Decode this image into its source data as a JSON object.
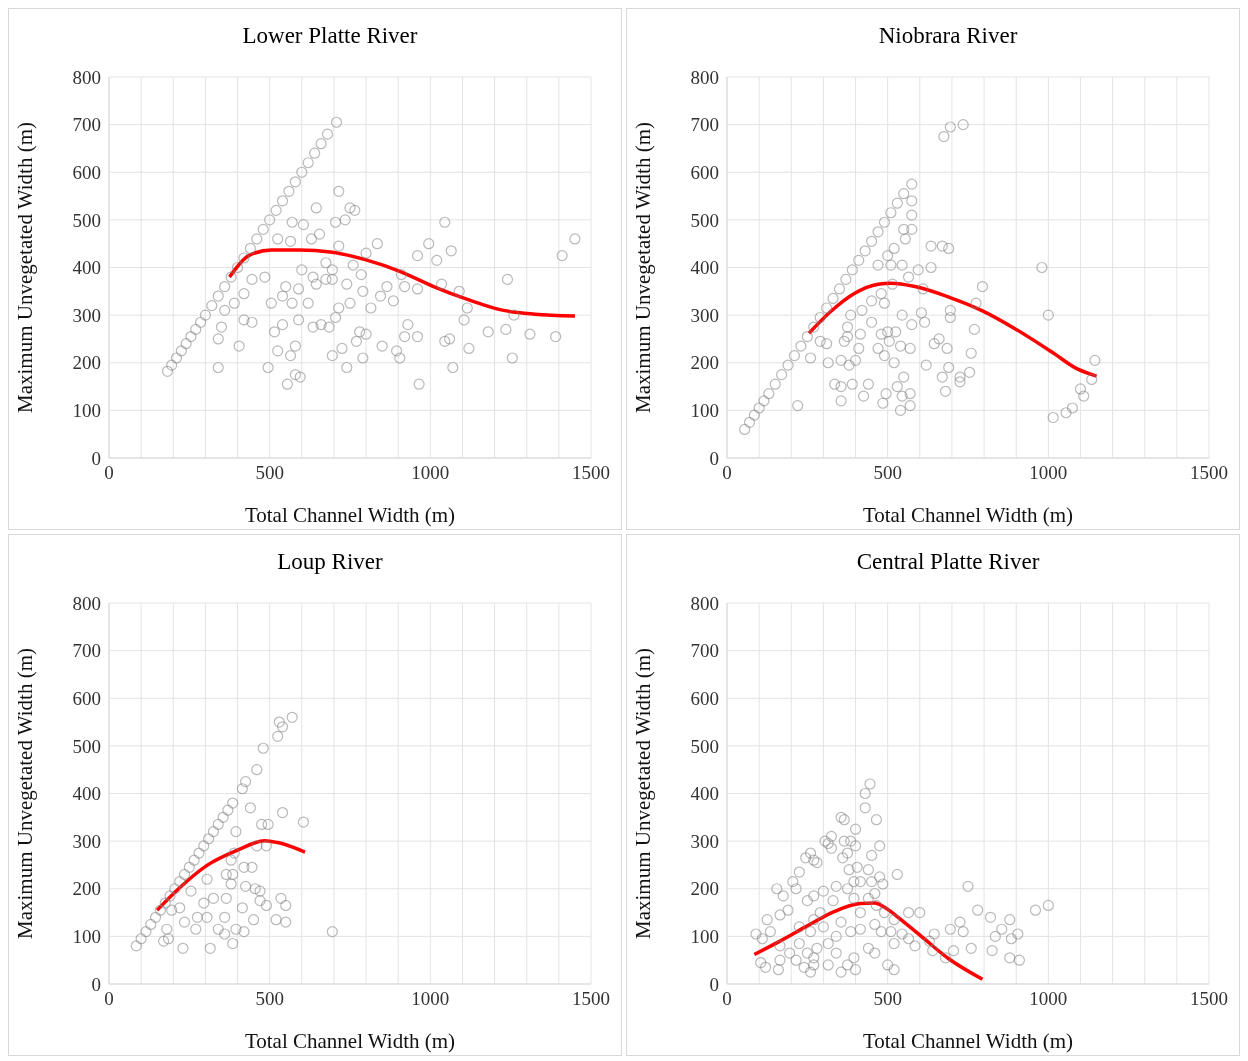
{
  "chart_data": [
    {
      "type": "scatter",
      "title": "Lower Platte River",
      "xlabel": "Total Channel Width (m)",
      "ylabel": "Maximum Unvegetated Width (m)",
      "xlim": [
        0,
        1500
      ],
      "xticks": [
        0,
        {
          "value": 100,
          "label": null
        },
        {
          "value": 200,
          "label": null
        },
        {
          "value": 300,
          "label": null
        },
        {
          "value": 400,
          "label": null
        },
        500,
        {
          "value": 600,
          "label": null
        },
        {
          "value": 700,
          "label": null
        },
        {
          "value": 800,
          "label": null
        },
        {
          "value": 900,
          "label": null
        },
        1000,
        {
          "value": 1100,
          "label": null
        },
        {
          "value": 1200,
          "label": null
        },
        {
          "value": 1300,
          "label": null
        },
        {
          "value": 1400,
          "label": null
        },
        1500
      ],
      "ylim": [
        0,
        800
      ],
      "yticks": [
        0,
        100,
        200,
        300,
        400,
        500,
        600,
        700,
        800
      ],
      "grid": true,
      "series": [
        {
          "type": "scatter",
          "marker": "circle",
          "color": "#7f7f7f",
          "x": [
            182,
            195,
            210,
            225,
            240,
            255,
            270,
            285,
            300,
            320,
            340,
            360,
            380,
            400,
            420,
            440,
            460,
            480,
            500,
            520,
            540,
            560,
            580,
            600,
            620,
            640,
            660,
            680,
            708,
            715,
            750,
            765,
            645,
            570,
            605,
            705,
            735,
            1045,
            995,
            1450,
            1410,
            1065,
            1020,
            960,
            835,
            800,
            715,
            655,
            630,
            525,
            565,
            1240,
            1035,
            1090,
            960,
            920,
            865,
            910,
            885,
            1115,
            1260,
            1105,
            1180,
            1235,
            1310,
            1390,
            1120,
            1255,
            1070,
            965,
            1060,
            1045,
            930,
            920,
            960,
            895,
            905,
            850,
            815,
            845,
            790,
            785,
            740,
            695,
            675,
            570,
            550,
            485,
            445,
            420,
            390,
            360,
            420,
            445,
            350,
            340,
            405,
            340,
            495,
            525,
            555,
            580,
            595,
            565,
            580,
            515,
            540,
            590,
            635,
            660,
            685,
            705,
            740,
            695,
            725,
            770,
            790,
            780,
            800,
            750,
            715,
            620,
            645,
            590,
            505,
            540,
            600,
            635,
            675,
            695,
            760
          ],
          "values": [
            182,
            195,
            210,
            225,
            240,
            255,
            270,
            285,
            300,
            320,
            340,
            360,
            380,
            400,
            420,
            440,
            460,
            480,
            500,
            520,
            540,
            560,
            580,
            600,
            620,
            640,
            660,
            680,
            705,
            560,
            525,
            520,
            525,
            495,
            490,
            495,
            500,
            495,
            450,
            460,
            425,
            435,
            415,
            425,
            450,
            430,
            445,
            470,
            460,
            460,
            455,
            375,
            365,
            350,
            355,
            360,
            360,
            385,
            330,
            315,
            300,
            290,
            265,
            270,
            260,
            255,
            230,
            210,
            190,
            155,
            250,
            245,
            280,
            255,
            255,
            225,
            210,
            235,
            315,
            340,
            350,
            385,
            365,
            375,
            410,
            325,
            360,
            380,
            375,
            345,
            325,
            310,
            290,
            285,
            275,
            250,
            235,
            190,
            190,
            225,
            155,
            175,
            170,
            215,
            235,
            265,
            280,
            290,
            275,
            280,
            275,
            295,
            190,
            215,
            230,
            245,
            210,
            265,
            260,
            325,
            315,
            325,
            365,
            355,
            325,
            340,
            395,
            380,
            375,
            395,
            405
          ]
        },
        {
          "type": "line",
          "color": "#ff0000",
          "x": [
            375,
            435,
            505,
            590,
            695,
            800,
            905,
            1010,
            1120,
            1220,
            1325,
            1450
          ],
          "values": [
            380,
            425,
            437,
            437,
            432,
            416,
            392,
            360,
            332,
            311,
            302,
            298
          ]
        }
      ]
    },
    {
      "type": "scatter",
      "title": "Niobrara River",
      "xlabel": "Total Channel Width (m)",
      "ylabel": "Maximum Unvegetated Width (m)",
      "xlim": [
        0,
        1500
      ],
      "xticks": [
        0,
        {
          "value": 100,
          "label": null
        },
        {
          "value": 200,
          "label": null
        },
        {
          "value": 300,
          "label": null
        },
        {
          "value": 400,
          "label": null
        },
        500,
        {
          "value": 600,
          "label": null
        },
        {
          "value": 700,
          "label": null
        },
        {
          "value": 800,
          "label": null
        },
        {
          "value": 900,
          "label": null
        },
        1000,
        {
          "value": 1100,
          "label": null
        },
        {
          "value": 1200,
          "label": null
        },
        {
          "value": 1300,
          "label": null
        },
        {
          "value": 1400,
          "label": null
        },
        1500
      ],
      "ylim": [
        0,
        800
      ],
      "yticks": [
        0,
        100,
        200,
        300,
        400,
        500,
        600,
        700,
        800
      ],
      "grid": true,
      "series": [
        {
          "type": "scatter",
          "marker": "circle",
          "color": "#7f7f7f",
          "x": [
            55,
            70,
            85,
            100,
            115,
            130,
            150,
            170,
            190,
            210,
            230,
            250,
            270,
            290,
            310,
            330,
            350,
            370,
            390,
            410,
            430,
            450,
            470,
            490,
            510,
            530,
            550,
            575,
            675,
            695,
            735,
            575,
            575,
            550,
            575,
            555,
            635,
            670,
            690,
            520,
            980,
            795,
            1000,
            775,
            695,
            695,
            610,
            595,
            635,
            545,
            510,
            470,
            500,
            565,
            515,
            480,
            450,
            490,
            420,
            385,
            375,
            450,
            415,
            375,
            480,
            500,
            525,
            575,
            615,
            645,
            660,
            685,
            760,
            770,
            545,
            605,
            570,
            540,
            505,
            470,
            490,
            410,
            365,
            310,
            290,
            260,
            315,
            355,
            380,
            400,
            520,
            620,
            690,
            670,
            725,
            755,
            725,
            680,
            550,
            530,
            570,
            545,
            495,
            485,
            425,
            440,
            390,
            355,
            335,
            355,
            540,
            570,
            220,
            1145,
            1135,
            1100,
            1110,
            1075,
            1055,
            1015
          ],
          "values": [
            60,
            75,
            90,
            105,
            120,
            135,
            155,
            175,
            195,
            215,
            235,
            255,
            275,
            295,
            315,
            335,
            355,
            375,
            395,
            415,
            435,
            455,
            475,
            495,
            515,
            535,
            555,
            575,
            675,
            695,
            700,
            540,
            510,
            480,
            480,
            460,
            445,
            445,
            440,
            440,
            400,
            360,
            300,
            325,
            310,
            295,
            355,
            395,
            400,
            405,
            405,
            405,
            425,
            380,
            365,
            345,
            330,
            325,
            310,
            300,
            275,
            285,
            260,
            255,
            260,
            265,
            265,
            280,
            285,
            240,
            250,
            230,
            220,
            270,
            300,
            305,
            230,
            235,
            245,
            230,
            215,
            230,
            245,
            240,
            245,
            210,
            200,
            205,
            195,
            205,
            200,
            195,
            190,
            170,
            170,
            180,
            160,
            140,
            170,
            150,
            135,
            130,
            135,
            115,
            130,
            155,
            155,
            150,
            155,
            120,
            100,
            110,
            110,
            205,
            165,
            145,
            130,
            105,
            95,
            85
          ]
        },
        {
          "type": "line",
          "color": "#ff0000",
          "x": [
            255,
            320,
            395,
            470,
            510,
            585,
            690,
            795,
            900,
            1010,
            1090,
            1150
          ],
          "values": [
            262,
            306,
            345,
            365,
            367,
            360,
            338,
            309,
            270,
            223,
            187,
            172
          ]
        }
      ]
    },
    {
      "type": "scatter",
      "title": "Loup River",
      "xlabel": "Total Channel Width (m)",
      "ylabel": "Maximum Unvegetated Width (m)",
      "xlim": [
        0,
        1500
      ],
      "xticks": [
        0,
        {
          "value": 100,
          "label": null
        },
        {
          "value": 200,
          "label": null
        },
        {
          "value": 300,
          "label": null
        },
        {
          "value": 400,
          "label": null
        },
        500,
        {
          "value": 600,
          "label": null
        },
        {
          "value": 700,
          "label": null
        },
        {
          "value": 800,
          "label": null
        },
        {
          "value": 900,
          "label": null
        },
        1000,
        {
          "value": 1100,
          "label": null
        },
        {
          "value": 1200,
          "label": null
        },
        {
          "value": 1300,
          "label": null
        },
        {
          "value": 1400,
          "label": null
        },
        1500
      ],
      "ylim": [
        0,
        800
      ],
      "yticks": [
        0,
        100,
        200,
        300,
        400,
        500,
        600,
        700,
        800
      ],
      "grid": true,
      "series": [
        {
          "type": "scatter",
          "marker": "circle",
          "color": "#7f7f7f",
          "x": [
            85,
            100,
            115,
            130,
            145,
            160,
            175,
            190,
            205,
            220,
            235,
            250,
            265,
            280,
            295,
            310,
            325,
            340,
            355,
            370,
            385,
            415,
            425,
            460,
            480,
            525,
            540,
            530,
            570,
            440,
            540,
            605,
            475,
            495,
            395,
            695,
            460,
            490,
            420,
            445,
            535,
            550,
            550,
            520,
            490,
            470,
            470,
            455,
            425,
            415,
            450,
            420,
            385,
            315,
            230,
            180,
            170,
            185,
            235,
            270,
            275,
            305,
            325,
            295,
            360,
            360,
            340,
            395,
            365,
            380,
            365,
            390,
            380,
            385,
            305,
            255,
            220,
            195
          ],
          "values": [
            80,
            95,
            110,
            125,
            140,
            155,
            170,
            185,
            200,
            215,
            230,
            245,
            260,
            275,
            290,
            305,
            320,
            335,
            350,
            365,
            380,
            410,
            425,
            450,
            495,
            520,
            540,
            550,
            560,
            370,
            360,
            340,
            335,
            335,
            320,
            110,
            290,
            290,
            245,
            245,
            180,
            165,
            130,
            135,
            165,
            195,
            175,
            200,
            205,
            160,
            135,
            110,
            85,
            75,
            75,
            115,
            90,
            95,
            130,
            115,
            140,
            140,
            180,
            170,
            140,
            105,
            115,
            115,
            180,
            210,
            230,
            275,
            260,
            230,
            220,
            195,
            160,
            155
          ]
        },
        {
          "type": "line",
          "color": "#ff0000",
          "x": [
            150,
            220,
            305,
            400,
            485,
            525,
            610
          ],
          "values": [
            155,
            202,
            249,
            281,
            301,
            297,
            277
          ]
        }
      ]
    },
    {
      "type": "scatter",
      "title": "Central Platte River",
      "xlabel": "Total Channel Width (m)",
      "ylabel": "Maximum Unvegetated Width (m)",
      "xlim": [
        0,
        1500
      ],
      "xticks": [
        0,
        {
          "value": 100,
          "label": null
        },
        {
          "value": 200,
          "label": null
        },
        {
          "value": 300,
          "label": null
        },
        {
          "value": 400,
          "label": null
        },
        500,
        {
          "value": 600,
          "label": null
        },
        {
          "value": 700,
          "label": null
        },
        {
          "value": 800,
          "label": null
        },
        {
          "value": 900,
          "label": null
        },
        1000,
        {
          "value": 1100,
          "label": null
        },
        {
          "value": 1200,
          "label": null
        },
        {
          "value": 1300,
          "label": null
        },
        {
          "value": 1400,
          "label": null
        },
        1500
      ],
      "ylim": [
        0,
        800
      ],
      "yticks": [
        0,
        100,
        200,
        300,
        400,
        500,
        600,
        700,
        800
      ],
      "grid": true,
      "series": [
        {
          "type": "scatter",
          "marker": "circle",
          "color": "#7f7f7f",
          "x": [
            445,
            430,
            430,
            465,
            355,
            365,
            400,
            305,
            325,
            315,
            365,
            385,
            400,
            475,
            450,
            325,
            375,
            360,
            260,
            270,
            280,
            245,
            225,
            205,
            215,
            155,
            175,
            380,
            405,
            440,
            475,
            530,
            485,
            450,
            415,
            395,
            375,
            340,
            300,
            270,
            250,
            330,
            395,
            440,
            460,
            750,
            1000,
            960,
            780,
            820,
            880,
            855,
            835,
            885,
            905,
            880,
            910,
            825,
            760,
            725,
            735,
            695,
            705,
            680,
            645,
            630,
            640,
            585,
            565,
            600,
            565,
            520,
            510,
            520,
            520,
            500,
            460,
            440,
            400,
            395,
            375,
            355,
            315,
            340,
            315,
            280,
            270,
            260,
            240,
            215,
            195,
            165,
            160,
            120,
            105,
            90,
            110,
            135,
            125,
            165,
            190,
            225,
            260,
            270,
            290,
            300,
            340,
            355,
            385,
            415,
            460,
            480,
            490,
            545,
            465,
            415,
            225,
            165,
            250,
            270
          ],
          "values": [
            420,
            400,
            370,
            345,
            350,
            345,
            325,
            300,
            310,
            295,
            300,
            300,
            290,
            290,
            270,
            285,
            275,
            265,
            275,
            260,
            255,
            265,
            235,
            215,
            200,
            200,
            185,
            240,
            245,
            240,
            225,
            230,
            210,
            215,
            215,
            215,
            200,
            205,
            195,
            185,
            175,
            175,
            180,
            180,
            190,
            205,
            165,
            155,
            155,
            140,
            135,
            115,
            100,
            95,
            105,
            55,
            50,
            70,
            75,
            130,
            110,
            115,
            70,
            55,
            105,
            90,
            70,
            80,
            95,
            150,
            150,
            135,
            110,
            85,
            30,
            40,
            65,
            75,
            30,
            55,
            40,
            25,
            40,
            65,
            85,
            75,
            40,
            25,
            35,
            50,
            65,
            50,
            30,
            35,
            45,
            105,
            95,
            110,
            135,
            145,
            155,
            120,
            110,
            135,
            150,
            120,
            100,
            130,
            110,
            115,
            125,
            110,
            150,
            105,
            165,
            150,
            85,
            80,
            65,
            55
          ]
        },
        {
          "type": "line",
          "color": "#ff0000",
          "x": [
            85,
            165,
            250,
            330,
            415,
            460,
            490,
            545,
            605,
            690,
            795
          ],
          "values": [
            62,
            90,
            122,
            151,
            169,
            170,
            161,
            133,
            100,
            53,
            10
          ]
        }
      ]
    }
  ]
}
